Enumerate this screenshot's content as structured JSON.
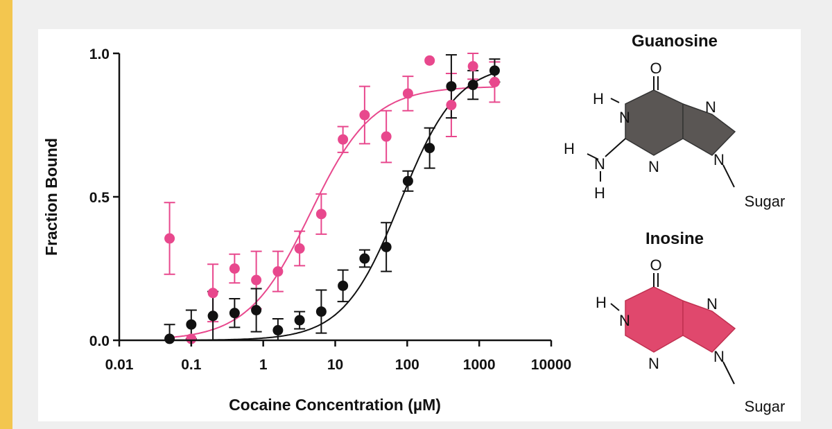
{
  "chart_data": {
    "type": "scatter",
    "xscale": "log",
    "xlabel": "Cocaine Concentration (µM)",
    "ylabel": "Fraction Bound",
    "xlim": [
      0.01,
      10000
    ],
    "ylim": [
      0,
      1
    ],
    "xticks": [
      0.01,
      0.1,
      1,
      10,
      100,
      1000,
      10000
    ],
    "xtick_labels": [
      "0.01",
      "0.1",
      "1",
      "10",
      "100",
      "1000",
      "10000"
    ],
    "yticks": [
      0,
      0.5,
      1
    ],
    "ytick_labels": [
      "0.0",
      "0.5",
      "1.0"
    ],
    "grid": false,
    "legend": "none",
    "series": [
      {
        "color": "#e8488d",
        "fit": {
          "model": "hill",
          "bottom": 0.0,
          "top": 0.885,
          "kd": 4.5,
          "n": 1.0
        },
        "points": [
          {
            "x": 0.05,
            "y": 0.355,
            "err": 0.125
          },
          {
            "x": 0.1,
            "y": 0.005,
            "err": 0.0
          },
          {
            "x": 0.2,
            "y": 0.165,
            "err": 0.1
          },
          {
            "x": 0.4,
            "y": 0.25,
            "err": 0.05
          },
          {
            "x": 0.8,
            "y": 0.21,
            "err": 0.1
          },
          {
            "x": 1.6,
            "y": 0.24,
            "err": 0.07
          },
          {
            "x": 3.2,
            "y": 0.32,
            "err": 0.06
          },
          {
            "x": 6.4,
            "y": 0.44,
            "err": 0.07
          },
          {
            "x": 12.8,
            "y": 0.7,
            "err": 0.045
          },
          {
            "x": 25.6,
            "y": 0.785,
            "err": 0.1
          },
          {
            "x": 51.2,
            "y": 0.71,
            "err": 0.09
          },
          {
            "x": 102.4,
            "y": 0.86,
            "err": 0.06
          },
          {
            "x": 204.8,
            "y": 0.975,
            "err": 0.0
          },
          {
            "x": 409.6,
            "y": 0.82,
            "err": 0.11
          },
          {
            "x": 819.2,
            "y": 0.955,
            "err": 0.045
          },
          {
            "x": 1638.4,
            "y": 0.9,
            "err": 0.07
          }
        ]
      },
      {
        "color": "#111111",
        "fit": {
          "model": "hill",
          "bottom": 0.0,
          "top": 0.965,
          "kd": 80,
          "n": 1.1
        },
        "points": [
          {
            "x": 0.05,
            "y": 0.005,
            "err": 0.05
          },
          {
            "x": 0.1,
            "y": 0.055,
            "err": 0.05
          },
          {
            "x": 0.2,
            "y": 0.085,
            "err": 0.085
          },
          {
            "x": 0.4,
            "y": 0.095,
            "err": 0.05
          },
          {
            "x": 0.8,
            "y": 0.105,
            "err": 0.075
          },
          {
            "x": 1.6,
            "y": 0.035,
            "err": 0.04
          },
          {
            "x": 3.2,
            "y": 0.07,
            "err": 0.03
          },
          {
            "x": 6.4,
            "y": 0.1,
            "err": 0.075
          },
          {
            "x": 12.8,
            "y": 0.19,
            "err": 0.055
          },
          {
            "x": 25.6,
            "y": 0.285,
            "err": 0.03
          },
          {
            "x": 51.2,
            "y": 0.325,
            "err": 0.085
          },
          {
            "x": 102.4,
            "y": 0.555,
            "err": 0.035
          },
          {
            "x": 204.8,
            "y": 0.67,
            "err": 0.07
          },
          {
            "x": 409.6,
            "y": 0.885,
            "err": 0.11
          },
          {
            "x": 819.2,
            "y": 0.89,
            "err": 0.05
          },
          {
            "x": 1638.4,
            "y": 0.94,
            "err": 0.04
          }
        ]
      }
    ]
  },
  "molecules": [
    {
      "title": "Guanosine",
      "fill": "#5a5654",
      "atoms": {
        "o": "O",
        "n1": "N",
        "h1": "H",
        "nh2_n": "N",
        "nh2_h_left": "H",
        "nh2_h_bottom": "H",
        "n3": "N",
        "n7": "N",
        "n9": "N",
        "sugar": "Sugar"
      }
    },
    {
      "title": "Inosine",
      "fill": "#e0486d",
      "atoms": {
        "o": "O",
        "n1": "N",
        "h1": "H",
        "n3": "N",
        "n7": "N",
        "n9": "N",
        "sugar": "Sugar"
      }
    }
  ]
}
